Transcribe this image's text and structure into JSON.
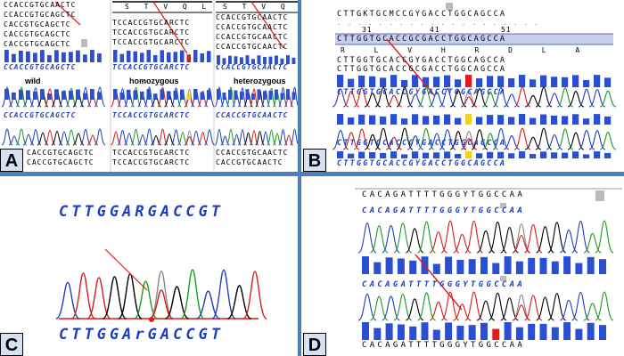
{
  "panels": {
    "A": {
      "label": "A",
      "rows_wild": [
        "CCACCGTGCAACTC",
        "CCACCGTGCAGCTC",
        "CACCGTGCAGCTC",
        "CACCGTGCAGCTC",
        "CACCGTGCAGCTC"
      ],
      "header_hom": "S T V Q L",
      "rows_hom": [
        "TCCACCGTGCARCTC",
        "TCCACCGTGCARCTC",
        "TCCACCGTGCARCTC"
      ],
      "header_het": "S T V Q L",
      "rows_het": [
        "CCACCGTGCAACTC",
        "CCACCGTGCAACTC",
        "CCACCGTGCAACTC",
        "CCACCGTGCAACTC"
      ],
      "trace_wild": "CCACCGTGCAGCTC",
      "trace_hom": "TCCACCGTGCARCTC",
      "trace_het": "CCACCGTGCAACTC",
      "caption_wild": "wild",
      "caption_hom": "homozygous",
      "caption_het": "heterozygous",
      "lower_wild": "CCACCGTGCAGCTC",
      "lower_hom": "TCCACCGTGCARCTC",
      "lower_het": "CCACCGTGCAACTC",
      "bottom_wild": [
        "CACCGTGCAGCTC",
        "CACCGTGCAGCTC"
      ],
      "bottom_hom": [
        "TCCACCGTGCARCTC",
        "TCCACCGTGCARCTC"
      ],
      "bottom_het": [
        "CCACCGTGCAACTC",
        "CACCGTGCAACTC"
      ]
    },
    "B": {
      "label": "B",
      "top_seq": "CTTGKTGCMCCGYGACCTGGCAGCCA",
      "dots": ". . . . . . . . . . . . . . . . . . . .",
      "pos_31": "31",
      "pos_41": "41",
      "pos_51": "51",
      "highlight_seq": "CTTGGTGCACCGCGACCTGGCAGCCA",
      "aa_seq": "R L V H R D L A",
      "rows": [
        "CTTGGTGCACCGYGACCTGGCAGCCA",
        "CTTGGTGCACCGCGACCTGGCAGCCA"
      ],
      "trace1": "CTTGGTGCACCGYGACCTGGCAGCCA",
      "trace2": "CTTGGTGCACCGYGACCTGGCAGCCA",
      "bottom": "CTTGGTGCACCGYGACCTGGCAGCCA"
    },
    "C": {
      "label": "C",
      "top_seq": "CTTGGARGACCGT",
      "bottom_seq": "CTTGGArGACCGT"
    },
    "D": {
      "label": "D",
      "top_seq": "CACAGATTTTGGGYTGGCCAA",
      "trace1": "CACAGATTTTGGGYTGGCCAA",
      "trace2": "CACAGATTTTGGGYTGGCCAA",
      "bottom": "CACAGATTTTGGGYTGGCCAA"
    }
  },
  "colors": {
    "trace_A": "#1a9b1a",
    "trace_C": "#1f3fbf",
    "trace_G": "#000000",
    "trace_T": "#d81b1b",
    "bar": "#2a4fd0",
    "arrow": "#e11b1b",
    "highlight": "#c8cdea"
  }
}
